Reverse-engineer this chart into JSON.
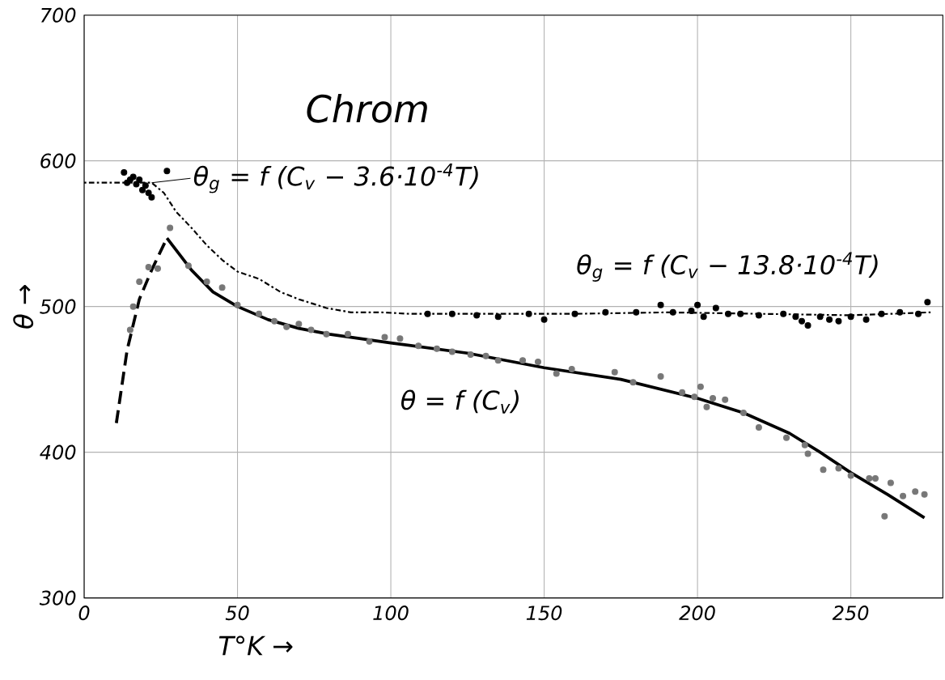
{
  "chart_data": {
    "type": "line",
    "xlabel": "T°K →",
    "ylabel": "θ →",
    "xlim": [
      0,
      280
    ],
    "ylim": [
      300,
      700
    ],
    "xticks": [
      0,
      50,
      100,
      150,
      200,
      250
    ],
    "yticks": [
      300,
      400,
      500,
      600,
      700
    ],
    "grid": true,
    "annotations": [
      "Chrom",
      {
        "text": "θ$_{g}$ = f (C$_{v}$ − 3.6·10$^{-4}$T)",
        "x": 22,
        "y": 585
      },
      {
        "text": "θ$_{g}$ = f (C$_{v}$ − 13.8·10$^{-4}$T)",
        "x": 210,
        "y": 497
      },
      {
        "text": "θ = f (C$_{v}$)",
        "x": 145,
        "y": 460
      }
    ],
    "series": [
      {
        "line_style": "solid",
        "color": "#000000",
        "x": [
          27,
          35,
          42,
          50,
          60,
          70,
          80,
          100,
          125,
          150,
          175,
          200,
          215,
          230,
          240,
          250,
          262,
          274
        ],
        "values": [
          547,
          525,
          510,
          500,
          491,
          485,
          481,
          475,
          468,
          458,
          450,
          437,
          427,
          413,
          400,
          386,
          371,
          355
        ]
      },
      {
        "line_style": "dashed",
        "color": "#000000",
        "x": [
          10.5,
          14,
          18,
          22,
          27
        ],
        "values": [
          420,
          470,
          505,
          525,
          547
        ]
      },
      {
        "line_style": "dotted",
        "color": "#000000",
        "x": [
          0,
          22,
          26,
          30,
          35,
          40,
          45,
          50,
          57,
          64,
          70,
          79,
          87,
          97,
          106,
          130,
          160,
          190,
          220,
          250,
          276
        ],
        "values": [
          585,
          585,
          578,
          565,
          554,
          542,
          532,
          524,
          519,
          510,
          505,
          499,
          496,
          496,
          495,
          495,
          495,
          496,
          495,
          494,
          496
        ]
      },
      {
        "type": "scatter",
        "marker": "circle",
        "color": "#777777",
        "x": [
          28,
          21,
          24,
          18,
          16,
          15,
          34,
          40,
          45,
          50,
          57,
          62,
          66,
          70,
          74,
          79,
          86,
          93,
          98,
          103,
          109,
          115,
          120,
          126,
          131,
          135,
          143,
          148,
          154,
          159,
          173,
          179,
          188,
          195,
          199,
          201,
          203,
          205,
          209,
          215,
          220,
          229,
          235,
          236,
          241,
          246,
          250,
          256,
          258,
          261,
          263,
          267,
          271,
          274
        ],
        "values": [
          554,
          527,
          526,
          517,
          500,
          484,
          528,
          517,
          513,
          501,
          495,
          490,
          486,
          488,
          484,
          481,
          481,
          476,
          479,
          478,
          473,
          471,
          469,
          467,
          466,
          463,
          463,
          462,
          454,
          457,
          455,
          448,
          452,
          441,
          438,
          445,
          431,
          437,
          436,
          427,
          417,
          410,
          405,
          399,
          388,
          389,
          384,
          382,
          382,
          356,
          379,
          370,
          373,
          371
        ]
      },
      {
        "type": "scatter",
        "marker": "circle",
        "color": "#000000",
        "x": [
          13,
          14,
          15,
          16,
          17,
          18,
          19,
          20,
          21,
          22,
          27,
          112,
          120,
          128,
          135,
          145,
          150,
          160,
          170,
          180,
          188,
          192,
          198,
          200,
          202,
          206,
          210,
          214,
          220,
          228,
          232,
          234,
          236,
          240,
          243,
          246,
          250,
          255,
          260,
          266,
          272,
          275
        ],
        "values": [
          592,
          585,
          587,
          589,
          584,
          587,
          580,
          583,
          578,
          575,
          593,
          495,
          495,
          494,
          493,
          495,
          491,
          495,
          496,
          496,
          501,
          496,
          497,
          501,
          493,
          499,
          495,
          495,
          494,
          495,
          493,
          490,
          487,
          493,
          491,
          490,
          493,
          491,
          495,
          496,
          495,
          503
        ]
      }
    ]
  }
}
